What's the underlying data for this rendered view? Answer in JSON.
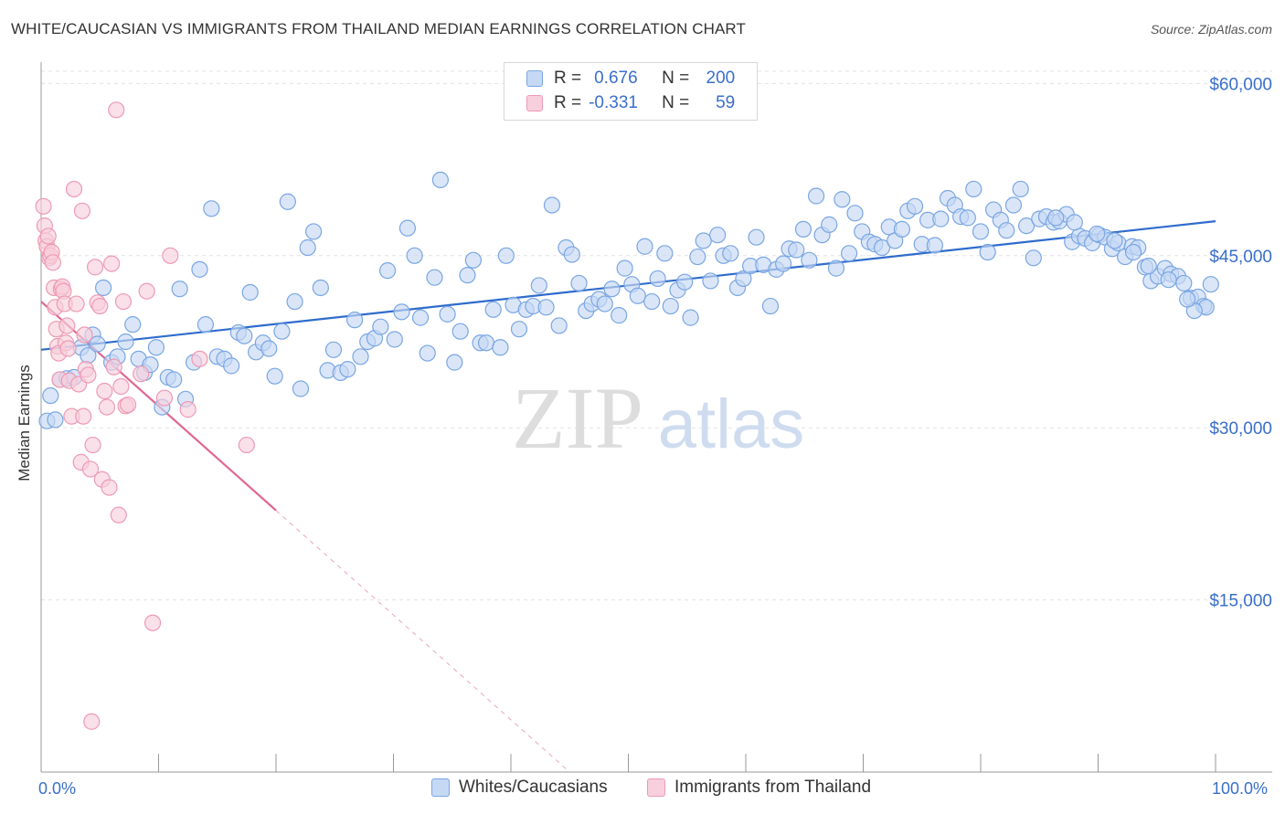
{
  "chart_data": {
    "type": "scatter",
    "title": "WHITE/CAUCASIAN VS IMMIGRANTS FROM THAILAND MEDIAN EARNINGS CORRELATION CHART",
    "source": "Source: ZipAtlas.com",
    "ylabel": "Median Earnings",
    "xlabel": "",
    "xlim": [
      0,
      100
    ],
    "ylim": [
      0,
      62500
    ],
    "x_tick_labels": [
      "0.0%",
      "100.0%"
    ],
    "y_ticks": [
      {
        "value": 15000,
        "label": "$15,000"
      },
      {
        "value": 30000,
        "label": "$30,000"
      },
      {
        "value": 45000,
        "label": "$45,000"
      },
      {
        "value": 60000,
        "label": "$60,000"
      }
    ],
    "watermark": "ZIPatlas",
    "legend": {
      "rows": [
        {
          "r_label": "R =",
          "r_value": "0.676",
          "n_label": "N =",
          "n_value": "200"
        },
        {
          "r_label": "R =",
          "r_value": "-0.331",
          "n_label": "N =",
          "n_value": "59"
        }
      ]
    },
    "series": [
      {
        "name": "Whites/Caucasians",
        "color": "#7aa6e3",
        "fill": "#c6d9f4",
        "line_color": "#2f6ccc",
        "trend": {
          "x": [
            0,
            100
          ],
          "y": [
            36800,
            48000
          ]
        },
        "points": [
          [
            0.5,
            30600
          ],
          [
            0.8,
            32800
          ],
          [
            1.2,
            30700
          ],
          [
            1.6,
            34200
          ],
          [
            2.2,
            34300
          ],
          [
            2.8,
            34400
          ],
          [
            3.4,
            37000
          ],
          [
            4.0,
            36300
          ],
          [
            4.4,
            38100
          ],
          [
            4.8,
            37300
          ],
          [
            5.3,
            42200
          ],
          [
            6.0,
            35700
          ],
          [
            6.5,
            36200
          ],
          [
            7.2,
            37500
          ],
          [
            7.8,
            39000
          ],
          [
            8.3,
            36000
          ],
          [
            8.8,
            34800
          ],
          [
            9.3,
            35500
          ],
          [
            9.8,
            37000
          ],
          [
            10.3,
            31800
          ],
          [
            10.8,
            34400
          ],
          [
            11.3,
            34200
          ],
          [
            11.8,
            42100
          ],
          [
            12.3,
            32500
          ],
          [
            13.0,
            35700
          ],
          [
            13.5,
            43800
          ],
          [
            14.0,
            39000
          ],
          [
            14.5,
            49100
          ],
          [
            15.0,
            36200
          ],
          [
            15.6,
            36000
          ],
          [
            16.2,
            35400
          ],
          [
            16.8,
            38300
          ],
          [
            17.3,
            38000
          ],
          [
            17.8,
            41800
          ],
          [
            18.3,
            36600
          ],
          [
            18.9,
            37400
          ],
          [
            19.4,
            36900
          ],
          [
            19.9,
            34500
          ],
          [
            20.5,
            38400
          ],
          [
            21.0,
            49700
          ],
          [
            21.6,
            41000
          ],
          [
            22.1,
            33400
          ],
          [
            22.7,
            45700
          ],
          [
            23.2,
            47100
          ],
          [
            23.8,
            42200
          ],
          [
            24.4,
            35000
          ],
          [
            24.9,
            36800
          ],
          [
            25.5,
            34800
          ],
          [
            26.1,
            35100
          ],
          [
            26.7,
            39400
          ],
          [
            27.2,
            36200
          ],
          [
            27.8,
            37500
          ],
          [
            28.4,
            37800
          ],
          [
            28.9,
            38800
          ],
          [
            29.5,
            43700
          ],
          [
            30.1,
            37700
          ],
          [
            30.7,
            40100
          ],
          [
            31.2,
            47400
          ],
          [
            31.8,
            45000
          ],
          [
            32.3,
            39600
          ],
          [
            32.9,
            36500
          ],
          [
            33.5,
            43100
          ],
          [
            34.0,
            51600
          ],
          [
            34.6,
            39900
          ],
          [
            35.2,
            35700
          ],
          [
            35.7,
            38400
          ],
          [
            36.3,
            43300
          ],
          [
            36.8,
            44600
          ],
          [
            37.4,
            37400
          ],
          [
            37.9,
            37400
          ],
          [
            38.5,
            40300
          ],
          [
            39.1,
            37000
          ],
          [
            39.6,
            45000
          ],
          [
            40.2,
            40700
          ],
          [
            40.7,
            38600
          ],
          [
            41.3,
            40300
          ],
          [
            41.9,
            40600
          ],
          [
            42.4,
            42400
          ],
          [
            43.0,
            40500
          ],
          [
            43.5,
            49400
          ],
          [
            44.1,
            38900
          ],
          [
            44.7,
            45700
          ],
          [
            45.2,
            45100
          ],
          [
            45.8,
            42600
          ],
          [
            46.4,
            40200
          ],
          [
            46.9,
            40800
          ],
          [
            47.5,
            41200
          ],
          [
            48.0,
            40800
          ],
          [
            48.6,
            42100
          ],
          [
            49.2,
            39800
          ],
          [
            49.7,
            43900
          ],
          [
            50.3,
            42500
          ],
          [
            50.8,
            41500
          ],
          [
            51.4,
            45800
          ],
          [
            52.0,
            41000
          ],
          [
            52.5,
            43000
          ],
          [
            53.1,
            45200
          ],
          [
            53.6,
            40600
          ],
          [
            54.2,
            42000
          ],
          [
            54.8,
            42700
          ],
          [
            55.3,
            39600
          ],
          [
            55.9,
            44900
          ],
          [
            56.4,
            46300
          ],
          [
            57.0,
            42800
          ],
          [
            57.6,
            46800
          ],
          [
            58.1,
            45000
          ],
          [
            58.7,
            45200
          ],
          [
            59.3,
            42200
          ],
          [
            59.8,
            43000
          ],
          [
            60.4,
            44100
          ],
          [
            60.9,
            46600
          ],
          [
            61.5,
            44200
          ],
          [
            62.1,
            40600
          ],
          [
            62.6,
            43800
          ],
          [
            63.2,
            44300
          ],
          [
            63.7,
            45600
          ],
          [
            64.3,
            45500
          ],
          [
            64.9,
            47300
          ],
          [
            65.4,
            44600
          ],
          [
            66.0,
            50200
          ],
          [
            66.5,
            46800
          ],
          [
            67.1,
            47700
          ],
          [
            67.7,
            43900
          ],
          [
            68.2,
            49900
          ],
          [
            68.8,
            45200
          ],
          [
            69.3,
            48700
          ],
          [
            69.9,
            47100
          ],
          [
            70.5,
            46200
          ],
          [
            71.0,
            46000
          ],
          [
            71.6,
            45700
          ],
          [
            72.2,
            47500
          ],
          [
            72.7,
            46300
          ],
          [
            73.3,
            47300
          ],
          [
            73.8,
            48900
          ],
          [
            74.4,
            49300
          ],
          [
            75.0,
            46000
          ],
          [
            75.5,
            48100
          ],
          [
            76.1,
            45900
          ],
          [
            76.6,
            48200
          ],
          [
            77.2,
            50000
          ],
          [
            77.8,
            49400
          ],
          [
            78.3,
            48400
          ],
          [
            78.9,
            48300
          ],
          [
            79.4,
            50800
          ],
          [
            80.0,
            47100
          ],
          [
            80.6,
            45300
          ],
          [
            81.1,
            49000
          ],
          [
            81.7,
            48100
          ],
          [
            82.2,
            47200
          ],
          [
            82.8,
            49400
          ],
          [
            83.4,
            50800
          ],
          [
            83.9,
            47600
          ],
          [
            84.5,
            44800
          ],
          [
            85.0,
            48200
          ],
          [
            85.6,
            48400
          ],
          [
            86.2,
            47900
          ],
          [
            86.7,
            48000
          ],
          [
            87.3,
            48600
          ],
          [
            87.8,
            46200
          ],
          [
            88.4,
            46700
          ],
          [
            88.9,
            46500
          ],
          [
            89.5,
            46100
          ],
          [
            90.1,
            46800
          ],
          [
            90.6,
            46600
          ],
          [
            91.2,
            45600
          ],
          [
            91.7,
            46100
          ],
          [
            92.3,
            44900
          ],
          [
            92.9,
            45800
          ],
          [
            93.4,
            45700
          ],
          [
            94.0,
            44000
          ],
          [
            94.5,
            42800
          ],
          [
            95.1,
            43200
          ],
          [
            95.7,
            43900
          ],
          [
            96.2,
            43400
          ],
          [
            96.8,
            43200
          ],
          [
            97.3,
            42600
          ],
          [
            97.9,
            41300
          ],
          [
            98.5,
            41400
          ],
          [
            99.0,
            40600
          ],
          [
            99.6,
            42500
          ],
          [
            99.2,
            40500
          ],
          [
            98.2,
            40200
          ],
          [
            97.6,
            41200
          ],
          [
            96.0,
            42900
          ],
          [
            94.3,
            44100
          ],
          [
            93.0,
            45300
          ],
          [
            91.4,
            46300
          ],
          [
            89.9,
            46900
          ],
          [
            88.0,
            47900
          ],
          [
            86.4,
            48300
          ]
        ]
      },
      {
        "name": "Immigrants from Thailand",
        "color": "#ee9ab4",
        "fill": "#f8cfdc",
        "line_color": "#e0688f",
        "trend": {
          "x": [
            0,
            20
          ],
          "y": [
            41000,
            22800
          ]
        },
        "trend_dashed": {
          "x": [
            20,
            45
          ],
          "y": [
            22800,
            0
          ]
        },
        "points": [
          [
            0.2,
            49300
          ],
          [
            0.3,
            47600
          ],
          [
            0.4,
            46300
          ],
          [
            0.5,
            45800
          ],
          [
            0.6,
            46700
          ],
          [
            0.7,
            44800
          ],
          [
            0.8,
            45000
          ],
          [
            0.9,
            45300
          ],
          [
            1.0,
            44400
          ],
          [
            1.1,
            42200
          ],
          [
            1.2,
            40500
          ],
          [
            1.3,
            38600
          ],
          [
            1.4,
            37100
          ],
          [
            1.5,
            36500
          ],
          [
            1.6,
            34200
          ],
          [
            1.7,
            42100
          ],
          [
            1.8,
            42300
          ],
          [
            1.9,
            41900
          ],
          [
            2.0,
            40800
          ],
          [
            2.1,
            37400
          ],
          [
            2.2,
            38900
          ],
          [
            2.3,
            36900
          ],
          [
            2.4,
            34100
          ],
          [
            2.6,
            31000
          ],
          [
            2.8,
            50800
          ],
          [
            3.0,
            40800
          ],
          [
            3.2,
            33800
          ],
          [
            3.4,
            27000
          ],
          [
            3.5,
            48900
          ],
          [
            3.6,
            31000
          ],
          [
            3.7,
            38100
          ],
          [
            3.8,
            35100
          ],
          [
            4.0,
            34600
          ],
          [
            4.2,
            26400
          ],
          [
            4.4,
            28500
          ],
          [
            4.6,
            44000
          ],
          [
            4.8,
            40900
          ],
          [
            5.0,
            40600
          ],
          [
            5.2,
            25500
          ],
          [
            5.4,
            33200
          ],
          [
            5.6,
            31800
          ],
          [
            5.8,
            24800
          ],
          [
            6.0,
            44300
          ],
          [
            6.2,
            35300
          ],
          [
            6.4,
            57700
          ],
          [
            6.6,
            22400
          ],
          [
            6.8,
            33600
          ],
          [
            7.0,
            41000
          ],
          [
            7.2,
            31900
          ],
          [
            7.4,
            32000
          ],
          [
            8.5,
            34700
          ],
          [
            9.0,
            41900
          ],
          [
            9.5,
            13000
          ],
          [
            10.5,
            32600
          ],
          [
            11.0,
            45000
          ],
          [
            12.5,
            31600
          ],
          [
            13.5,
            36000
          ],
          [
            17.5,
            28500
          ],
          [
            4.3,
            4400
          ]
        ]
      }
    ]
  },
  "bottom_legend": [
    {
      "label": "Whites/Caucasians"
    },
    {
      "label": "Immigrants from Thailand"
    }
  ]
}
